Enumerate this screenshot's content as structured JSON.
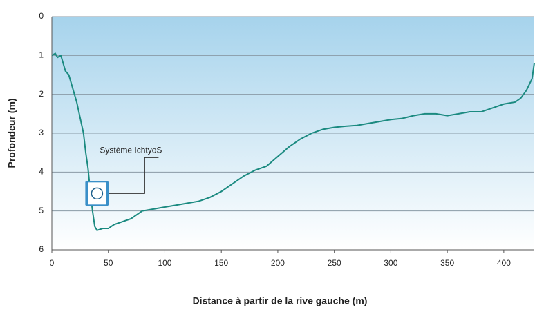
{
  "chart_data": {
    "type": "line",
    "x_label": "Distance à partir de la rive gauche (m)",
    "y_label": "Profondeur (m)",
    "annotation": {
      "text": "Système IchtyoS",
      "x": 40,
      "y": 4.55
    },
    "xlim": [
      0,
      427
    ],
    "xticks": [
      0,
      50,
      100,
      150,
      200,
      250,
      300,
      350,
      400
    ],
    "ylim": [
      0,
      6
    ],
    "yticks": [
      0,
      1,
      2,
      3,
      4,
      5,
      6
    ],
    "y_inverted": true,
    "grid": true,
    "x": [
      0,
      3,
      5,
      8,
      10,
      12,
      15,
      18,
      20,
      22,
      25,
      28,
      30,
      32,
      34,
      36,
      38,
      40,
      45,
      50,
      55,
      60,
      70,
      80,
      90,
      100,
      110,
      120,
      130,
      140,
      150,
      160,
      170,
      180,
      190,
      200,
      210,
      220,
      230,
      240,
      250,
      260,
      270,
      280,
      290,
      300,
      310,
      320,
      330,
      340,
      350,
      360,
      370,
      380,
      390,
      400,
      410,
      415,
      420,
      425,
      427
    ],
    "series": [
      {
        "color": "#1b8a80",
        "values": [
          1.0,
          0.95,
          1.05,
          1.0,
          1.2,
          1.4,
          1.5,
          1.8,
          2.0,
          2.2,
          2.6,
          3.0,
          3.5,
          3.9,
          4.5,
          5.0,
          5.4,
          5.5,
          5.45,
          5.45,
          5.35,
          5.3,
          5.2,
          5.0,
          4.95,
          4.9,
          4.85,
          4.8,
          4.75,
          4.65,
          4.5,
          4.3,
          4.1,
          3.95,
          3.85,
          3.6,
          3.35,
          3.15,
          3.0,
          2.9,
          2.85,
          2.82,
          2.8,
          2.75,
          2.7,
          2.65,
          2.62,
          2.55,
          2.5,
          2.5,
          2.55,
          2.5,
          2.45,
          2.45,
          2.35,
          2.25,
          2.2,
          2.1,
          1.9,
          1.6,
          1.2
        ]
      }
    ]
  }
}
